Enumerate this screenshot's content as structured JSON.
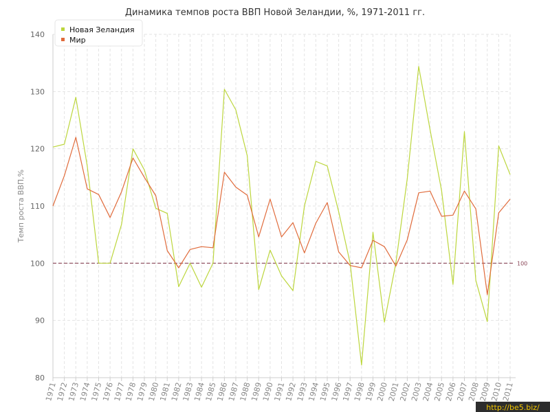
{
  "chart_data": {
    "type": "line",
    "title": "Динамика темпов роста ВВП Новой Зеландии, %, 1971-2011 гг.",
    "ylabel": "Темп роста ВВП,%",
    "xlabel": "",
    "ylim": [
      80,
      140
    ],
    "yticks": [
      80,
      90,
      100,
      110,
      120,
      130,
      140
    ],
    "grid": true,
    "legend_position": "top-left",
    "x": [
      "1971",
      "1972",
      "1973",
      "1974",
      "1975",
      "1976",
      "1977",
      "1978",
      "1979",
      "1980",
      "1981",
      "1982",
      "1983",
      "1984",
      "1985",
      "1986",
      "1987",
      "1988",
      "1989",
      "1990",
      "1991",
      "1992",
      "1993",
      "1994",
      "1995",
      "1996",
      "1997",
      "1998",
      "1999",
      "2000",
      "2001",
      "2002",
      "2003",
      "2004",
      "2005",
      "2006",
      "2007",
      "2008",
      "2009",
      "2010",
      "2011"
    ],
    "series": [
      {
        "name": "Новая Зеландия",
        "color": "#bcd63c",
        "values": [
          120.3,
          120.8,
          129.0,
          117.0,
          100.0,
          100.0,
          106.8,
          120.0,
          116.3,
          109.6,
          108.7,
          95.9,
          100.0,
          95.8,
          100.0,
          130.4,
          126.8,
          118.8,
          95.4,
          102.3,
          97.8,
          95.2,
          110.0,
          117.8,
          117.0,
          109.0,
          100.0,
          82.2,
          105.4,
          89.7,
          100.0,
          114.8,
          134.4,
          123.3,
          112.7,
          96.3,
          123.0,
          97.0,
          89.8,
          120.5,
          115.5
        ]
      },
      {
        "name": "Мир",
        "color": "#e06a3a",
        "values": [
          110.0,
          115.3,
          122.0,
          113.0,
          112.0,
          108.0,
          112.5,
          118.4,
          115.0,
          111.8,
          102.2,
          99.2,
          102.4,
          102.9,
          102.7,
          115.9,
          113.3,
          111.9,
          104.6,
          111.2,
          104.6,
          107.1,
          101.8,
          107.0,
          110.6,
          102.0,
          99.6,
          99.2,
          104.0,
          102.9,
          99.5,
          104.1,
          112.3,
          112.6,
          108.2,
          108.4,
          112.6,
          109.5,
          94.5,
          108.8,
          111.2
        ]
      }
    ],
    "reference_line": {
      "value": 100,
      "label": "100",
      "color": "#884455"
    }
  },
  "watermark": {
    "text": "http://be5.biz/",
    "color": "#f2c600"
  },
  "colors": {
    "grid": "#e3e3e3",
    "axis": "#cccccc"
  }
}
